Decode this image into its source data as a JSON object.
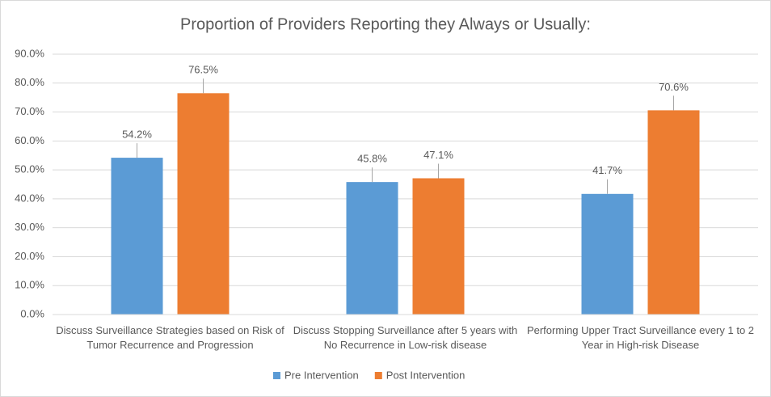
{
  "chart_data": {
    "type": "bar",
    "title": "Proportion of Providers Reporting they Always or Usually:",
    "categories": [
      "Discuss Surveillance Strategies based on Risk of Tumor Recurrence and Progression",
      "Discuss Stopping Surveillance after 5 years with No Recurrence in Low-risk disease",
      "Performing Upper Tract Surveillance every 1 to 2 Year in High-risk Disease"
    ],
    "series": [
      {
        "name": "Pre Intervention",
        "color": "#5b9bd5",
        "values": [
          54.2,
          45.8,
          41.7
        ],
        "value_labels": [
          "54.2%",
          "45.8%",
          "41.7%"
        ]
      },
      {
        "name": "Post Intervention",
        "color": "#ed7d31",
        "values": [
          76.5,
          47.1,
          70.6
        ],
        "value_labels": [
          "76.5%",
          "47.1%",
          "70.6%"
        ]
      }
    ],
    "ylim": [
      0,
      90
    ],
    "yticks": [
      {
        "value": 0,
        "label": "0.0%"
      },
      {
        "value": 10,
        "label": "10.0%"
      },
      {
        "value": 20,
        "label": "20.0%"
      },
      {
        "value": 30,
        "label": "30.0%"
      },
      {
        "value": 40,
        "label": "40.0%"
      },
      {
        "value": 50,
        "label": "50.0%"
      },
      {
        "value": 60,
        "label": "60.0%"
      },
      {
        "value": 70,
        "label": "70.0%"
      },
      {
        "value": 80,
        "label": "80.0%"
      },
      {
        "value": 90,
        "label": "90.0%"
      }
    ],
    "grid": true,
    "legend": "bottom"
  }
}
